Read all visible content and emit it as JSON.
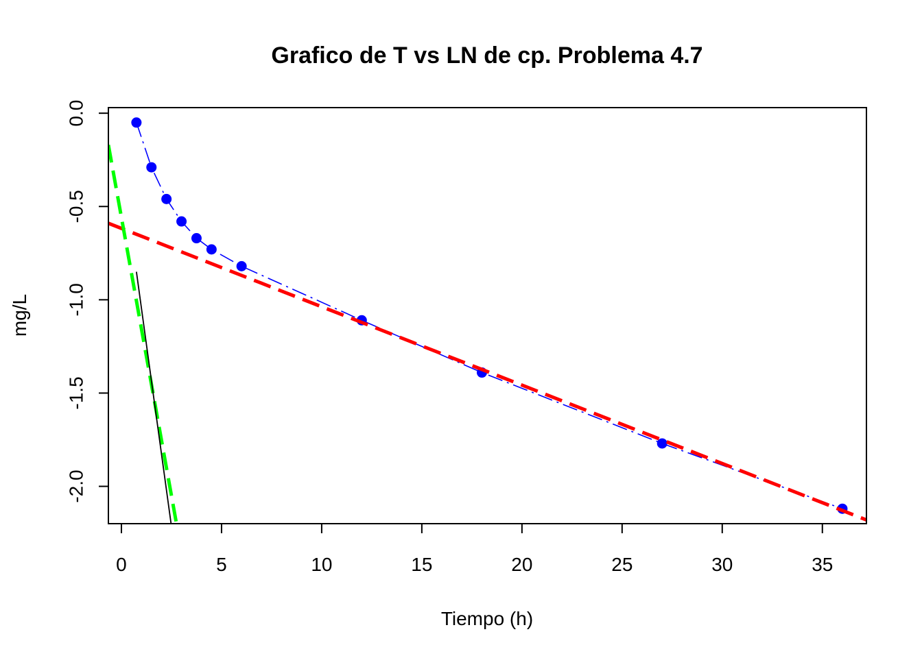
{
  "chart_data": {
    "type": "scatter",
    "title": "Grafico de T vs LN de cp. Problema 4.7",
    "xlabel": "Tiempo (h)",
    "ylabel": "mg/L",
    "xlim": [
      -0.65,
      37.2
    ],
    "ylim": [
      -2.2,
      0.03
    ],
    "x_ticks": [
      "0",
      "5",
      "10",
      "15",
      "20",
      "25",
      "30",
      "35"
    ],
    "y_ticks": [
      "0.0",
      "-0.5",
      "-1.0",
      "-1.5",
      "-2.0"
    ],
    "grid": false,
    "series": [
      {
        "style": "points-with-dashdot-line",
        "color": "#0000ff",
        "x": [
          0.75,
          1.5,
          2.25,
          3,
          3.75,
          4.5,
          6,
          12,
          18,
          27,
          36
        ],
        "y": [
          -0.05,
          -0.29,
          -0.46,
          -0.58,
          -0.67,
          -0.73,
          -0.82,
          -1.11,
          -1.39,
          -1.77,
          -2.12
        ]
      },
      {
        "style": "dashed-line",
        "color": "#ff0000",
        "x": [
          -0.65,
          37.2
        ],
        "y": [
          -0.59,
          -2.18
        ]
      },
      {
        "style": "dashed-line",
        "color": "#00ff00",
        "x": [
          -0.65,
          2.75
        ],
        "y": [
          -0.17,
          -2.2
        ]
      },
      {
        "style": "solid-line",
        "color": "#000000",
        "x": [
          0.75,
          2.48
        ],
        "y": [
          -0.85,
          -2.2
        ]
      }
    ]
  }
}
